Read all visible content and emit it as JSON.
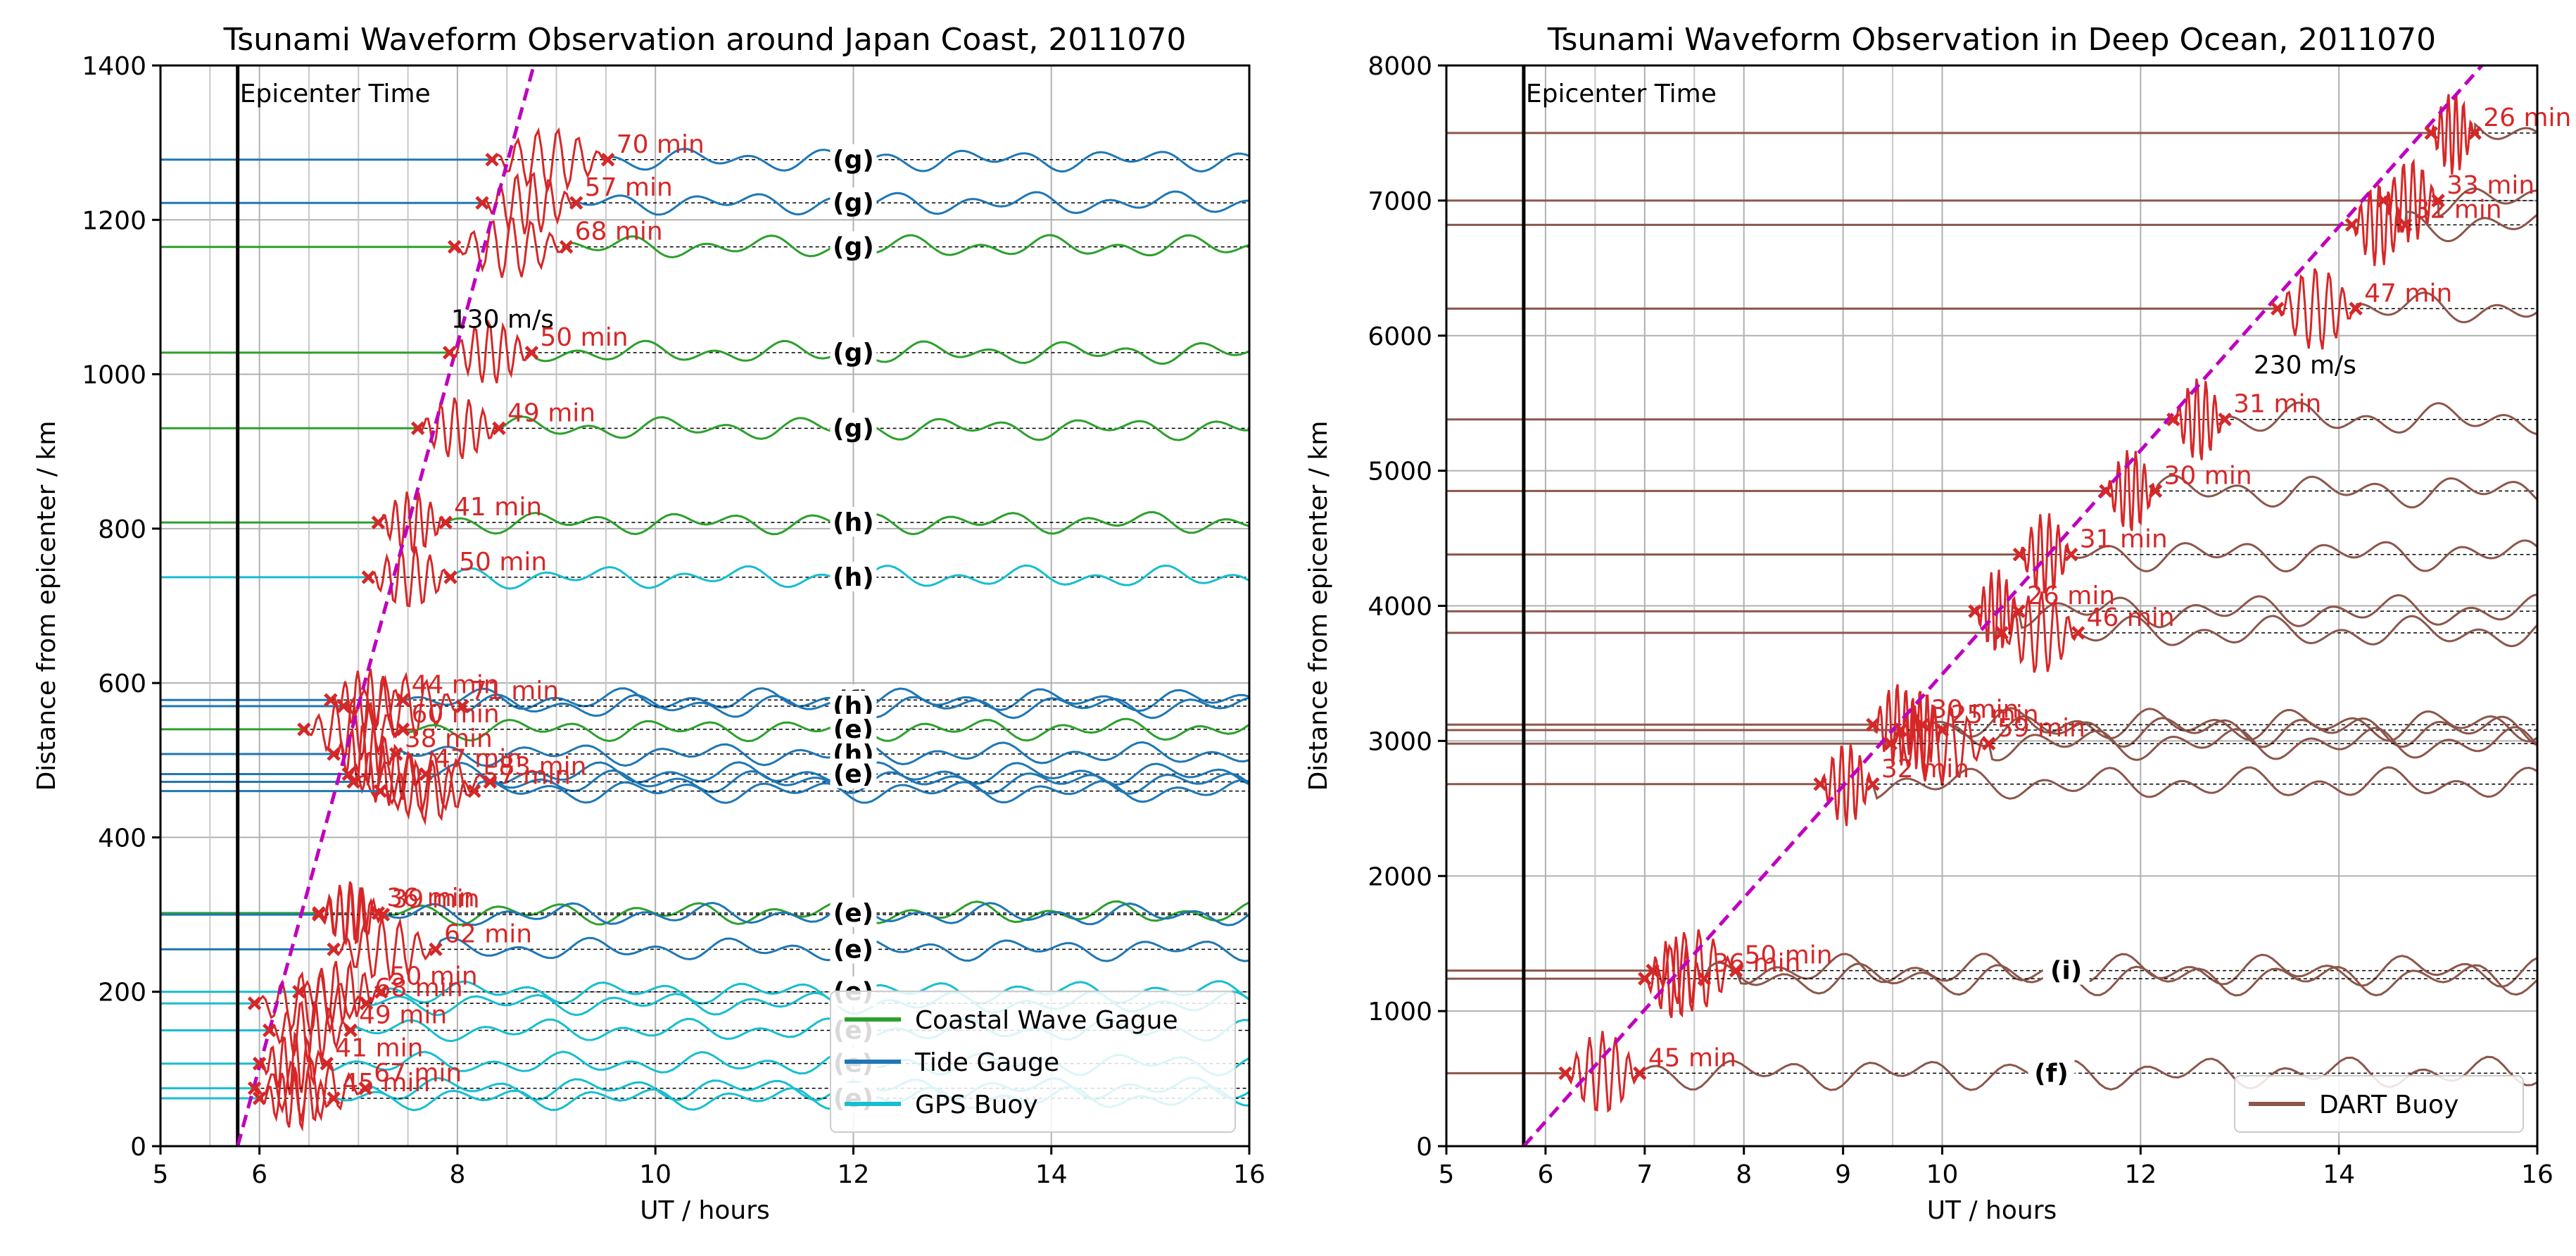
{
  "chart_data": [
    {
      "type": "line",
      "title": "Tsunami Waveform Observation around Japan Coast, 2011070",
      "xlabel": "UT / hours",
      "ylabel": "Distance from epicenter / km",
      "xlim": [
        5,
        16
      ],
      "ylim": [
        0,
        1400
      ],
      "xticks": [
        5,
        6,
        8,
        10,
        12,
        14,
        16
      ],
      "yticks": [
        0,
        200,
        400,
        600,
        800,
        1000,
        1200,
        1400
      ],
      "minor_x_grid": [
        5.5,
        6.5,
        7,
        7.5,
        8.5,
        9,
        9.5
      ],
      "grid": true,
      "epicenter_time": 5.78,
      "epicenter_label": "Epicenter Time",
      "speed_line": {
        "label": "130 m/s",
        "speed_ms": 130,
        "t0": 5.78,
        "color": "#bf00bf"
      },
      "series_colors": {
        "Coastal Wave Gague": "#2ca02c",
        "Tide Gauge": "#1f77b4",
        "GPS Buoy": "#17becf"
      },
      "legend": {
        "placement": "lower right",
        "entries": [
          {
            "label": "Coastal Wave Gague",
            "color": "#2ca02c"
          },
          {
            "label": "Tide Gauge",
            "color": "#1f77b4"
          },
          {
            "label": "GPS Buoy",
            "color": "#17becf"
          }
        ]
      },
      "stations": [
        {
          "dist": 1278,
          "type": "Tide Gauge",
          "tag": "(g)",
          "t1": 8.35,
          "t2": 9.52,
          "label": "70 min"
        },
        {
          "dist": 1222,
          "type": "Tide Gauge",
          "tag": "(g)",
          "t1": 8.25,
          "t2": 9.2,
          "label": "57 min"
        },
        {
          "dist": 1165,
          "type": "Coastal Wave Gague",
          "tag": "(g)",
          "t1": 7.97,
          "t2": 9.1,
          "label": "68 min"
        },
        {
          "dist": 1028,
          "type": "Coastal Wave Gague",
          "tag": "(g)",
          "t1": 7.92,
          "t2": 8.75,
          "label": "50 min"
        },
        {
          "dist": 930,
          "type": "Coastal Wave Gague",
          "tag": "(g)",
          "t1": 7.6,
          "t2": 8.42,
          "label": "49 min"
        },
        {
          "dist": 808,
          "type": "Coastal Wave Gague",
          "tag": "(h)",
          "t1": 7.2,
          "t2": 7.88,
          "label": "41 min"
        },
        {
          "dist": 737,
          "type": "GPS Buoy",
          "tag": "(h)",
          "t1": 7.1,
          "t2": 7.93,
          "label": "50 min"
        },
        {
          "dist": 578,
          "type": "Tide Gauge",
          "tag": "(f)",
          "t1": 6.72,
          "t2": 7.45,
          "label": "44 min"
        },
        {
          "dist": 570,
          "type": "Tide Gauge",
          "tag": "(h)",
          "t1": 6.85,
          "t2": 8.05,
          "label": "71 min"
        },
        {
          "dist": 540,
          "type": "Coastal Wave Gague",
          "tag": "(e)",
          "t1": 6.45,
          "t2": 7.45,
          "label": "60 min"
        },
        {
          "dist": 508,
          "type": "Tide Gauge",
          "tag": "(h)",
          "t1": 6.75,
          "t2": 7.38,
          "label": "38 min"
        },
        {
          "dist": 482,
          "type": "Tide Gauge",
          "tag": "(e)",
          "t1": 6.9,
          "t2": 7.68,
          "label": "47 min"
        },
        {
          "dist": 472,
          "type": "Tide Gauge",
          "tag": "",
          "t1": 6.95,
          "t2": 8.33,
          "label": "83 min"
        },
        {
          "dist": 460,
          "type": "Tide Gauge",
          "tag": "",
          "t1": 7.22,
          "t2": 8.17,
          "label": "57 min"
        },
        {
          "dist": 302,
          "type": "Coastal Wave Gague",
          "tag": "(e)",
          "t1": 6.6,
          "t2": 7.2,
          "label": "36 min"
        },
        {
          "dist": 300,
          "type": "Tide Gauge",
          "tag": "",
          "t1": 6.6,
          "t2": 7.25,
          "label": "39 min"
        },
        {
          "dist": 255,
          "type": "Tide Gauge",
          "tag": "(e)",
          "t1": 6.75,
          "t2": 7.78,
          "label": "62 min"
        },
        {
          "dist": 200,
          "type": "GPS Buoy",
          "tag": "(e)",
          "t1": 6.4,
          "t2": 7.23,
          "label": "50 min"
        },
        {
          "dist": 185,
          "type": "GPS Buoy",
          "tag": "",
          "t1": 5.95,
          "t2": 7.08,
          "label": "68 min"
        },
        {
          "dist": 150,
          "type": "GPS Buoy",
          "tag": "(e)",
          "t1": 6.1,
          "t2": 6.92,
          "label": "49 min"
        },
        {
          "dist": 107,
          "type": "GPS Buoy",
          "tag": "(e)",
          "t1": 6.0,
          "t2": 6.68,
          "label": "41 min"
        },
        {
          "dist": 75,
          "type": "GPS Buoy",
          "tag": "",
          "t1": 5.95,
          "t2": 7.07,
          "label": "67 min"
        },
        {
          "dist": 62,
          "type": "GPS Buoy",
          "tag": "(e)",
          "t1": 6.0,
          "t2": 6.75,
          "label": "45 min"
        }
      ]
    },
    {
      "type": "line",
      "title": "Tsunami Waveform Observation in Deep Ocean, 2011070",
      "xlabel": "UT / hours",
      "ylabel": "Distance from epicenter / km",
      "xlim": [
        5,
        16
      ],
      "ylim": [
        0,
        8000
      ],
      "xticks": [
        5,
        6,
        7,
        8,
        9,
        10,
        12,
        14,
        16
      ],
      "yticks": [
        0,
        1000,
        2000,
        3000,
        4000,
        5000,
        6000,
        7000,
        8000
      ],
      "minor_x_grid": [
        6.5,
        7.5,
        9.5
      ],
      "grid": true,
      "epicenter_time": 5.78,
      "epicenter_label": "Epicenter Time",
      "speed_line": {
        "label": "230 m/s",
        "speed_ms": 230,
        "t0": 5.78,
        "color": "#bf00bf"
      },
      "series_colors": {
        "DART Buoy": "#8c564b"
      },
      "legend": {
        "placement": "lower right",
        "entries": [
          {
            "label": "DART Buoy",
            "color": "#8c564b"
          }
        ]
      },
      "stations": [
        {
          "dist": 7500,
          "type": "DART Buoy",
          "tag": "",
          "t1": 14.93,
          "t2": 15.37,
          "label": "26 min"
        },
        {
          "dist": 7000,
          "type": "DART Buoy",
          "tag": "",
          "t1": 14.45,
          "t2": 15.0,
          "label": "33 min"
        },
        {
          "dist": 6820,
          "type": "DART Buoy",
          "tag": "",
          "t1": 14.13,
          "t2": 14.67,
          "label": "32 min"
        },
        {
          "dist": 6200,
          "type": "DART Buoy",
          "tag": "",
          "t1": 13.38,
          "t2": 14.17,
          "label": "47 min"
        },
        {
          "dist": 5380,
          "type": "DART Buoy",
          "tag": "",
          "t1": 12.33,
          "t2": 12.85,
          "label": "31 min"
        },
        {
          "dist": 4850,
          "type": "DART Buoy",
          "tag": "",
          "t1": 11.65,
          "t2": 12.15,
          "label": "30 min"
        },
        {
          "dist": 4380,
          "type": "DART Buoy",
          "tag": "",
          "t1": 10.78,
          "t2": 11.3,
          "label": "31 min"
        },
        {
          "dist": 3960,
          "type": "DART Buoy",
          "tag": "",
          "t1": 10.33,
          "t2": 10.77,
          "label": "26 min"
        },
        {
          "dist": 3800,
          "type": "DART Buoy",
          "tag": "",
          "t1": 10.6,
          "t2": 11.37,
          "label": "46 min"
        },
        {
          "dist": 3120,
          "type": "DART Buoy",
          "tag": "",
          "t1": 9.3,
          "t2": 9.8,
          "label": "30 min"
        },
        {
          "dist": 3080,
          "type": "DART Buoy",
          "tag": "",
          "t1": 9.58,
          "t2": 10.0,
          "label": "25 min"
        },
        {
          "dist": 2980,
          "type": "DART Buoy",
          "tag": "",
          "t1": 9.48,
          "t2": 10.47,
          "label": "59 min"
        },
        {
          "dist": 2680,
          "type": "DART Buoy",
          "tag": "",
          "t1": 8.77,
          "t2": 9.3,
          "label": "32 min"
        },
        {
          "dist": 1300,
          "type": "DART Buoy",
          "tag": "(i)",
          "t1": 7.08,
          "t2": 7.92,
          "label": "50 min"
        },
        {
          "dist": 1240,
          "type": "DART Buoy",
          "tag": "",
          "t1": 7.0,
          "t2": 7.6,
          "label": "36 min"
        },
        {
          "dist": 540,
          "type": "DART Buoy",
          "tag": "(f)",
          "t1": 6.2,
          "t2": 6.95,
          "label": "45 min"
        }
      ]
    }
  ]
}
